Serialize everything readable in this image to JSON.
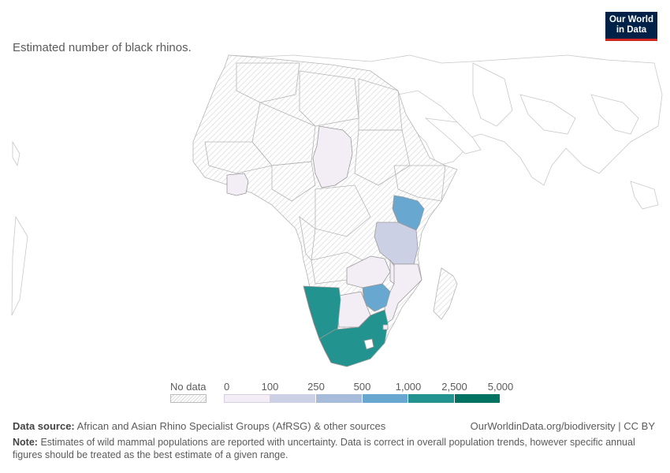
{
  "header": {
    "subtitle": "Estimated number of black rhinos.",
    "logo_line1": "Our World",
    "logo_line2": "in Data"
  },
  "colors": {
    "bins": [
      "#f3eef6",
      "#ccd0e4",
      "#a7bcdb",
      "#68a8d0",
      "#22938f",
      "#007261"
    ],
    "border": "#999999",
    "outline_land": "#ffffff"
  },
  "legend": {
    "no_data_label": "No data",
    "ticks": [
      "0",
      "100",
      "250",
      "500",
      "1,000",
      "2,500",
      "5,000"
    ]
  },
  "countries": [
    {
      "name": "Chad",
      "bin": 0
    },
    {
      "name": "Ivory Coast",
      "bin": 0
    },
    {
      "name": "Kenya",
      "bin": 3
    },
    {
      "name": "Tanzania",
      "bin": 1
    },
    {
      "name": "Malawi",
      "bin": 0
    },
    {
      "name": "Zambia",
      "bin": 0
    },
    {
      "name": "Mozambique",
      "bin": 0
    },
    {
      "name": "Zimbabwe",
      "bin": 3
    },
    {
      "name": "Botswana",
      "bin": 0
    },
    {
      "name": "Namibia",
      "bin": 4
    },
    {
      "name": "South Africa",
      "bin": 4
    },
    {
      "name": "Eswatini",
      "bin": 0
    }
  ],
  "footer": {
    "source_label": "Data source:",
    "source_text": "African and Asian Rhino Specialist Groups (AfRSG) & other sources",
    "url": "OurWorldinData.org/biodiversity | CC BY",
    "note_label": "Note:",
    "note_text": "Estimates of wild mammal populations are reported with uncertainty. Data is correct in overall population trends, however specific annual figures should be treated as the best estimate of a given range."
  }
}
